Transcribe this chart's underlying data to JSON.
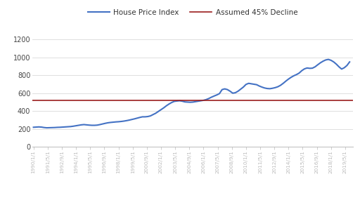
{
  "title": "",
  "legend_line1": "House Price Index",
  "legend_line2": "Assumed 45% Decline",
  "line_color": "#4472C4",
  "decline_color": "#9B1C1C",
  "background_color": "#FFFFFF",
  "grid_color": "#D9D9D9",
  "ylim": [
    0,
    1300
  ],
  "yticks": [
    0,
    200,
    400,
    600,
    800,
    1000,
    1200
  ],
  "assumed_decline_value": 522,
  "x_labels": [
    "1990/1/1",
    "1991/5/1",
    "1992/9/1",
    "1994/1/1",
    "1995/5/1",
    "1996/9/1",
    "1998/1/1",
    "1999/5/1",
    "2000/9/1",
    "2002/1/1",
    "2003/5/1",
    "2004/9/1",
    "2006/1/1",
    "2007/5/1",
    "2008/9/1",
    "2010/1/1",
    "2011/5/1",
    "2012/9/1",
    "2014/1/1",
    "2015/5/1",
    "2016/9/1",
    "2018/1/1",
    "2019/5/1"
  ],
  "hpi_data": [
    [
      1990,
      1,
      218
    ],
    [
      1990,
      4,
      220
    ],
    [
      1990,
      7,
      222
    ],
    [
      1990,
      10,
      220
    ],
    [
      1991,
      1,
      215
    ],
    [
      1991,
      4,
      212
    ],
    [
      1991,
      7,
      213
    ],
    [
      1991,
      10,
      214
    ],
    [
      1992,
      1,
      215
    ],
    [
      1992,
      4,
      217
    ],
    [
      1992,
      7,
      218
    ],
    [
      1992,
      10,
      220
    ],
    [
      1993,
      1,
      222
    ],
    [
      1993,
      4,
      224
    ],
    [
      1993,
      7,
      226
    ],
    [
      1993,
      10,
      230
    ],
    [
      1994,
      1,
      235
    ],
    [
      1994,
      4,
      240
    ],
    [
      1994,
      7,
      245
    ],
    [
      1994,
      10,
      248
    ],
    [
      1995,
      1,
      245
    ],
    [
      1995,
      4,
      242
    ],
    [
      1995,
      7,
      240
    ],
    [
      1995,
      10,
      240
    ],
    [
      1996,
      1,
      242
    ],
    [
      1996,
      4,
      248
    ],
    [
      1996,
      7,
      255
    ],
    [
      1996,
      10,
      262
    ],
    [
      1997,
      1,
      268
    ],
    [
      1997,
      4,
      272
    ],
    [
      1997,
      7,
      275
    ],
    [
      1997,
      10,
      278
    ],
    [
      1998,
      1,
      280
    ],
    [
      1998,
      4,
      283
    ],
    [
      1998,
      7,
      287
    ],
    [
      1998,
      10,
      292
    ],
    [
      1999,
      1,
      298
    ],
    [
      1999,
      4,
      305
    ],
    [
      1999,
      7,
      312
    ],
    [
      1999,
      10,
      320
    ],
    [
      2000,
      1,
      328
    ],
    [
      2000,
      4,
      335
    ],
    [
      2000,
      7,
      335
    ],
    [
      2000,
      10,
      338
    ],
    [
      2001,
      1,
      345
    ],
    [
      2001,
      4,
      360
    ],
    [
      2001,
      7,
      375
    ],
    [
      2001,
      10,
      395
    ],
    [
      2002,
      1,
      415
    ],
    [
      2002,
      4,
      435
    ],
    [
      2002,
      7,
      458
    ],
    [
      2002,
      10,
      478
    ],
    [
      2003,
      1,
      495
    ],
    [
      2003,
      4,
      508
    ],
    [
      2003,
      7,
      512
    ],
    [
      2003,
      10,
      515
    ],
    [
      2004,
      1,
      510
    ],
    [
      2004,
      4,
      502
    ],
    [
      2004,
      7,
      500
    ],
    [
      2004,
      10,
      498
    ],
    [
      2005,
      1,
      500
    ],
    [
      2005,
      4,
      505
    ],
    [
      2005,
      7,
      510
    ],
    [
      2005,
      10,
      515
    ],
    [
      2006,
      1,
      520
    ],
    [
      2006,
      4,
      528
    ],
    [
      2006,
      7,
      540
    ],
    [
      2006,
      10,
      555
    ],
    [
      2007,
      1,
      568
    ],
    [
      2007,
      4,
      580
    ],
    [
      2007,
      7,
      595
    ],
    [
      2007,
      10,
      640
    ],
    [
      2008,
      1,
      648
    ],
    [
      2008,
      4,
      640
    ],
    [
      2008,
      7,
      622
    ],
    [
      2008,
      10,
      600
    ],
    [
      2009,
      1,
      605
    ],
    [
      2009,
      4,
      622
    ],
    [
      2009,
      7,
      645
    ],
    [
      2009,
      10,
      668
    ],
    [
      2010,
      1,
      698
    ],
    [
      2010,
      4,
      710
    ],
    [
      2010,
      7,
      705
    ],
    [
      2010,
      10,
      700
    ],
    [
      2011,
      1,
      695
    ],
    [
      2011,
      4,
      680
    ],
    [
      2011,
      7,
      668
    ],
    [
      2011,
      10,
      658
    ],
    [
      2012,
      1,
      652
    ],
    [
      2012,
      4,
      650
    ],
    [
      2012,
      7,
      655
    ],
    [
      2012,
      10,
      662
    ],
    [
      2013,
      1,
      672
    ],
    [
      2013,
      4,
      688
    ],
    [
      2013,
      7,
      710
    ],
    [
      2013,
      10,
      735
    ],
    [
      2014,
      1,
      758
    ],
    [
      2014,
      4,
      778
    ],
    [
      2014,
      7,
      795
    ],
    [
      2014,
      10,
      808
    ],
    [
      2015,
      1,
      825
    ],
    [
      2015,
      4,
      852
    ],
    [
      2015,
      7,
      872
    ],
    [
      2015,
      10,
      882
    ],
    [
      2016,
      1,
      878
    ],
    [
      2016,
      4,
      880
    ],
    [
      2016,
      7,
      895
    ],
    [
      2016,
      10,
      918
    ],
    [
      2017,
      1,
      940
    ],
    [
      2017,
      4,
      958
    ],
    [
      2017,
      7,
      972
    ],
    [
      2017,
      10,
      978
    ],
    [
      2018,
      1,
      968
    ],
    [
      2018,
      4,
      950
    ],
    [
      2018,
      7,
      925
    ],
    [
      2018,
      10,
      895
    ],
    [
      2019,
      1,
      870
    ],
    [
      2019,
      4,
      885
    ],
    [
      2019,
      7,
      910
    ],
    [
      2019,
      10,
      950
    ]
  ]
}
